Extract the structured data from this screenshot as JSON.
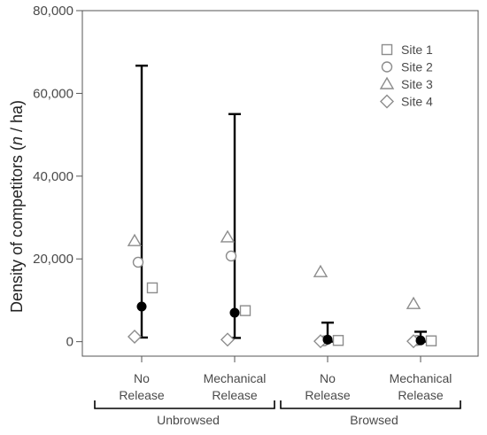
{
  "chart_data": {
    "type": "scatter",
    "ylabel_main": "Density of competitors (",
    "ylabel_italic": "n",
    "ylabel_end": " / ha)",
    "ylim": [
      -3500,
      80000
    ],
    "yticks": [
      0,
      20000,
      40000,
      60000,
      80000
    ],
    "ytick_labels": [
      "0",
      "20,000",
      "40,000",
      "60,000",
      "80,000"
    ],
    "categories": [
      {
        "line1": "No",
        "line2": "Release"
      },
      {
        "line1": "Mechanical",
        "line2": "Release"
      },
      {
        "line1": "No",
        "line2": "Release"
      },
      {
        "line1": "Mechanical",
        "line2": "Release"
      }
    ],
    "groups": [
      {
        "label": "Unbrowsed",
        "categories": [
          0,
          1
        ]
      },
      {
        "label": "Browsed",
        "categories": [
          2,
          3
        ]
      }
    ],
    "legend_position": "top-right",
    "series": [
      {
        "name": "Site 1",
        "marker": "square",
        "values": [
          13000,
          7500,
          300,
          200
        ]
      },
      {
        "name": "Site 2",
        "marker": "circle",
        "values": [
          19200,
          20700,
          200,
          300
        ]
      },
      {
        "name": "Site 3",
        "marker": "triangle",
        "values": [
          24300,
          25200,
          16800,
          9100
        ]
      },
      {
        "name": "Site 4",
        "marker": "diamond",
        "values": [
          1200,
          500,
          100,
          100
        ]
      }
    ],
    "means": [
      8500,
      7000,
      500,
      300
    ],
    "error_bars": [
      {
        "low": 1000,
        "high": 66700
      },
      {
        "low": 900,
        "high": 55000
      },
      {
        "low": 0,
        "high": 4600
      },
      {
        "low": 0,
        "high": 2400
      }
    ],
    "colors": {
      "markers": "#8c8c8c",
      "mean": "#000000",
      "axis": "#555555"
    }
  }
}
